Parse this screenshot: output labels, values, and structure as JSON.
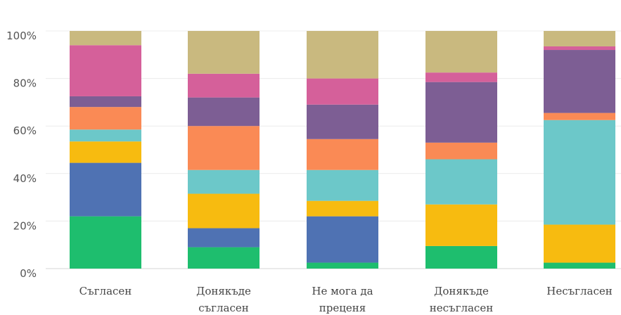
{
  "chart_data": {
    "type": "bar",
    "stacked": true,
    "normalized": true,
    "categories": [
      [
        "Съгласен"
      ],
      [
        "Донякъде",
        "съгласен"
      ],
      [
        "Не мога да",
        "преценя"
      ],
      [
        "Донякъде",
        "несъгласен"
      ],
      [
        "Несъгласен"
      ]
    ],
    "yticks": [
      "0%",
      "20%",
      "40%",
      "60%",
      "80%",
      "100%"
    ],
    "ylim": [
      0,
      100
    ],
    "grid": true,
    "series": [
      {
        "color": "#1ebe6e",
        "values": [
          22,
          9,
          2.5,
          9.5,
          2.5
        ]
      },
      {
        "color": "#4f72b3",
        "values": [
          22.5,
          8,
          19.5,
          0,
          0
        ]
      },
      {
        "color": "#f7bb10",
        "values": [
          9,
          14.5,
          6.5,
          17.5,
          16
        ]
      },
      {
        "color": "#6cc8c9",
        "values": [
          5,
          10,
          13,
          19,
          44
        ]
      },
      {
        "color": "#fa8a55",
        "values": [
          9.5,
          18.5,
          13,
          7,
          3
        ]
      },
      {
        "color": "#7d5e94",
        "values": [
          4.5,
          12,
          14.5,
          25.5,
          26.5
        ]
      },
      {
        "color": "#d5609a",
        "values": [
          21.5,
          10,
          11,
          4,
          1.5
        ]
      },
      {
        "color": "#c9b97f",
        "values": [
          6,
          18,
          20,
          17.5,
          6.5
        ]
      }
    ]
  }
}
